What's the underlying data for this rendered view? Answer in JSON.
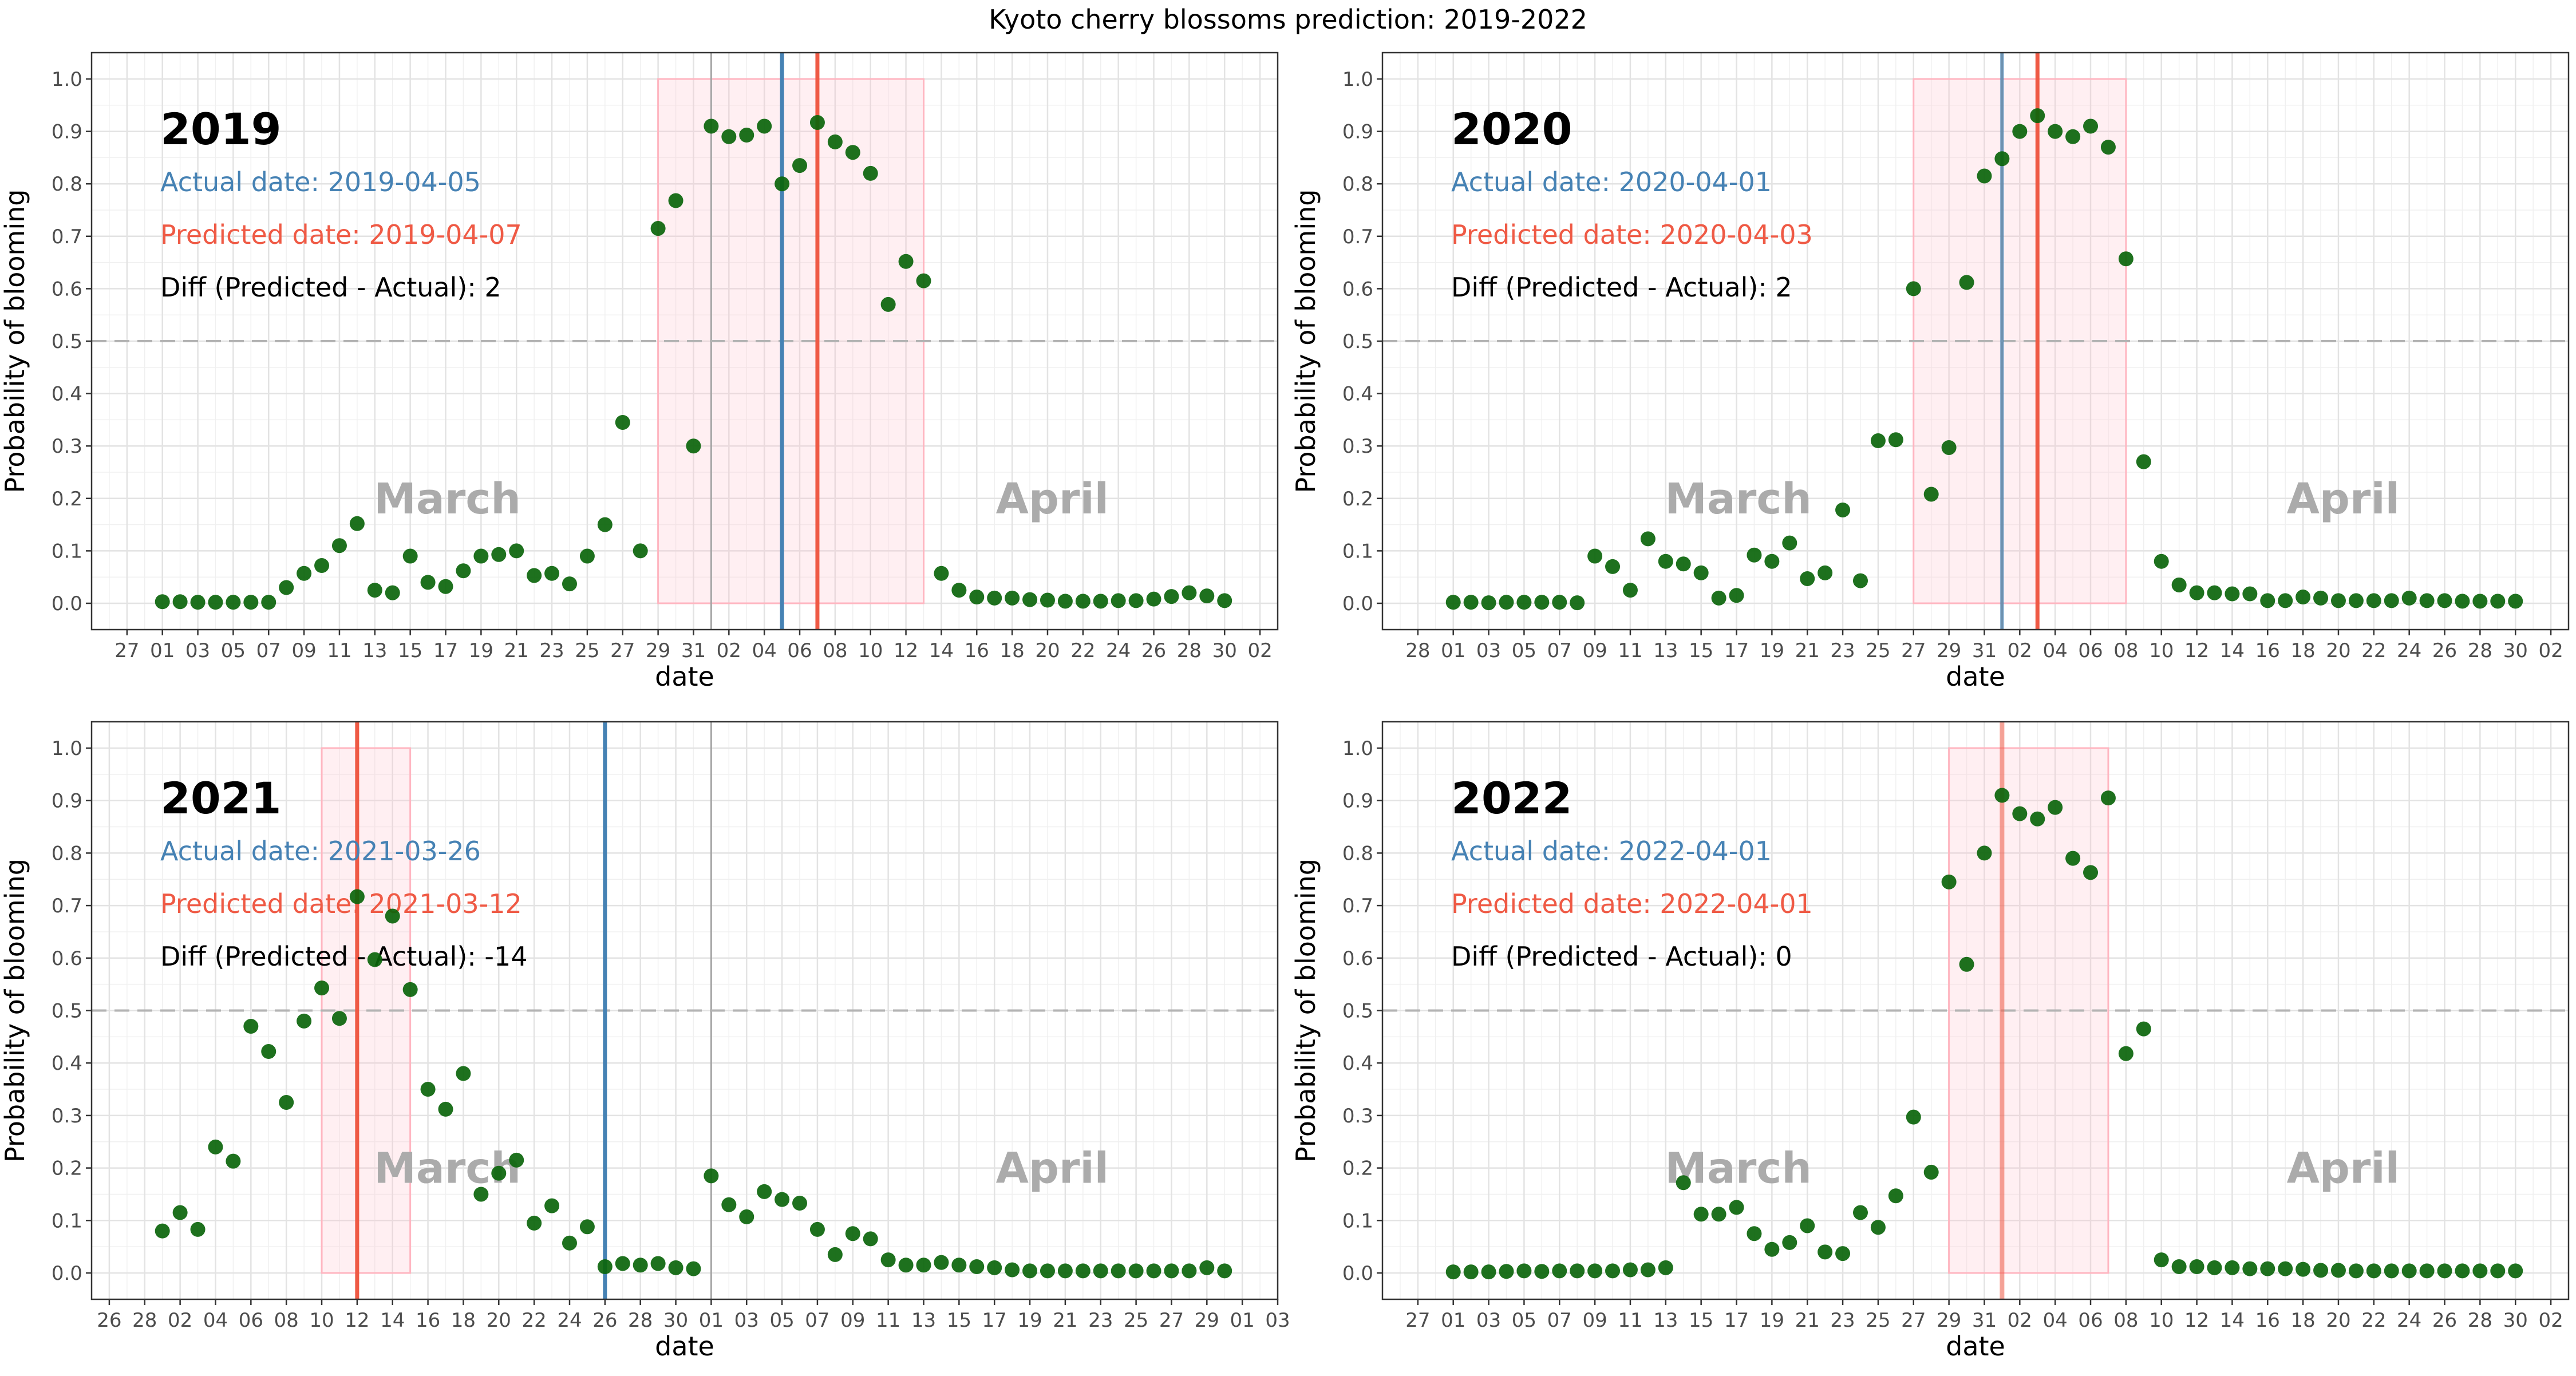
{
  "title": "Kyoto cherry blossoms prediction: 2019-2022",
  "colors": {
    "point": "#0b650b",
    "actual": "#4682b4",
    "predicted": "#ef5a45",
    "band_fill": "#ffc0cb",
    "band_stroke": "#ffb6c1",
    "threshold": "#b3b3b3",
    "month_label": "#ababab",
    "grid_major": "#e3e3e3",
    "grid_minor": "#f0f0f0",
    "panel_border": "#333333"
  },
  "chart_data": [
    {
      "type": "scatter",
      "year_label": "2019",
      "actual_text": "Actual date: 2019-04-05",
      "predicted_text": "Predicted date: 2019-04-07",
      "diff_text": "Diff (Predicted - Actual): 2",
      "month_labels": [
        "March",
        "April"
      ],
      "xlabel": "date",
      "ylabel": "Probability of blooming",
      "ylim": [
        0,
        1
      ],
      "yticks": [
        "0.0",
        "0.1",
        "0.2",
        "0.3",
        "0.4",
        "0.5",
        "0.6",
        "0.7",
        "0.8",
        "0.9",
        "1.0"
      ],
      "threshold": 0.5,
      "x_range": [
        "2019-02-25",
        "2019-05-03"
      ],
      "xticks": [
        "2019-02-27",
        "2019-03-01",
        "2019-03-03",
        "2019-03-05",
        "2019-03-07",
        "2019-03-09",
        "2019-03-11",
        "2019-03-13",
        "2019-03-15",
        "2019-03-17",
        "2019-03-19",
        "2019-03-21",
        "2019-03-23",
        "2019-03-25",
        "2019-03-27",
        "2019-03-29",
        "2019-03-31",
        "2019-04-02",
        "2019-04-04",
        "2019-04-06",
        "2019-04-08",
        "2019-04-10",
        "2019-04-12",
        "2019-04-14",
        "2019-04-16",
        "2019-04-18",
        "2019-04-20",
        "2019-04-22",
        "2019-04-24",
        "2019-04-26",
        "2019-04-28",
        "2019-04-30",
        "2019-05-02"
      ],
      "xtick_labels": [
        "27",
        "01",
        "03",
        "05",
        "07",
        "09",
        "11",
        "13",
        "15",
        "17",
        "19",
        "21",
        "23",
        "25",
        "27",
        "29",
        "31",
        "02",
        "04",
        "06",
        "08",
        "10",
        "12",
        "14",
        "16",
        "18",
        "20",
        "22",
        "24",
        "26",
        "28",
        "30",
        "02"
      ],
      "month_boundary": "2019-04-01",
      "actual_date": "2019-04-05",
      "predicted_date": "2019-04-07",
      "band": [
        "2019-03-29",
        "2019-04-13"
      ],
      "x": [
        "2019-03-01",
        "2019-03-02",
        "2019-03-03",
        "2019-03-04",
        "2019-03-05",
        "2019-03-06",
        "2019-03-07",
        "2019-03-08",
        "2019-03-09",
        "2019-03-10",
        "2019-03-11",
        "2019-03-12",
        "2019-03-13",
        "2019-03-14",
        "2019-03-15",
        "2019-03-16",
        "2019-03-17",
        "2019-03-18",
        "2019-03-19",
        "2019-03-20",
        "2019-03-21",
        "2019-03-22",
        "2019-03-23",
        "2019-03-24",
        "2019-03-25",
        "2019-03-26",
        "2019-03-27",
        "2019-03-28",
        "2019-03-29",
        "2019-03-30",
        "2019-03-31",
        "2019-04-01",
        "2019-04-02",
        "2019-04-03",
        "2019-04-04",
        "2019-04-05",
        "2019-04-06",
        "2019-04-07",
        "2019-04-08",
        "2019-04-09",
        "2019-04-10",
        "2019-04-11",
        "2019-04-12",
        "2019-04-13",
        "2019-04-14",
        "2019-04-15",
        "2019-04-16",
        "2019-04-17",
        "2019-04-18",
        "2019-04-19",
        "2019-04-20",
        "2019-04-21",
        "2019-04-22",
        "2019-04-23",
        "2019-04-24",
        "2019-04-25",
        "2019-04-26",
        "2019-04-27",
        "2019-04-28",
        "2019-04-29",
        "2019-04-30"
      ],
      "y": [
        0.003,
        0.003,
        0.002,
        0.002,
        0.002,
        0.002,
        0.002,
        0.03,
        0.057,
        0.072,
        0.11,
        0.152,
        0.025,
        0.02,
        0.09,
        0.04,
        0.032,
        0.062,
        0.09,
        0.093,
        0.1,
        0.053,
        0.057,
        0.037,
        0.09,
        0.15,
        0.345,
        0.1,
        0.715,
        0.768,
        0.3,
        0.91,
        0.89,
        0.893,
        0.91,
        0.8,
        0.835,
        0.917,
        0.88,
        0.86,
        0.82,
        0.57,
        0.652,
        0.615,
        0.057,
        0.025,
        0.012,
        0.01,
        0.01,
        0.007,
        0.006,
        0.004,
        0.004,
        0.004,
        0.005,
        0.005,
        0.008,
        0.013,
        0.02,
        0.014,
        0.005
      ]
    },
    {
      "type": "scatter",
      "year_label": "2020",
      "actual_text": "Actual date: 2020-04-01",
      "predicted_text": "Predicted date: 2020-04-03",
      "diff_text": "Diff (Predicted - Actual): 2",
      "month_labels": [
        "March",
        "April"
      ],
      "xlabel": "date",
      "ylabel": "Probability of blooming",
      "ylim": [
        0,
        1
      ],
      "yticks": [
        "0.0",
        "0.1",
        "0.2",
        "0.3",
        "0.4",
        "0.5",
        "0.6",
        "0.7",
        "0.8",
        "0.9",
        "1.0"
      ],
      "threshold": 0.5,
      "x_range": [
        "2020-02-26",
        "2020-05-03"
      ],
      "xticks": [
        "2020-02-28",
        "2020-03-01",
        "2020-03-03",
        "2020-03-05",
        "2020-03-07",
        "2020-03-09",
        "2020-03-11",
        "2020-03-13",
        "2020-03-15",
        "2020-03-17",
        "2020-03-19",
        "2020-03-21",
        "2020-03-23",
        "2020-03-25",
        "2020-03-27",
        "2020-03-29",
        "2020-03-31",
        "2020-04-02",
        "2020-04-04",
        "2020-04-06",
        "2020-04-08",
        "2020-04-10",
        "2020-04-12",
        "2020-04-14",
        "2020-04-16",
        "2020-04-18",
        "2020-04-20",
        "2020-04-22",
        "2020-04-24",
        "2020-04-26",
        "2020-04-28",
        "2020-04-30",
        "2020-05-02"
      ],
      "xtick_labels": [
        "28",
        "01",
        "03",
        "05",
        "07",
        "09",
        "11",
        "13",
        "15",
        "17",
        "19",
        "21",
        "23",
        "25",
        "27",
        "29",
        "31",
        "02",
        "04",
        "06",
        "08",
        "10",
        "12",
        "14",
        "16",
        "18",
        "20",
        "22",
        "24",
        "26",
        "28",
        "30",
        "02"
      ],
      "month_boundary": "2020-04-01",
      "actual_date": "2020-04-01",
      "predicted_date": "2020-04-03",
      "band": [
        "2020-03-27",
        "2020-04-08"
      ],
      "x": [
        "2020-03-01",
        "2020-03-02",
        "2020-03-03",
        "2020-03-04",
        "2020-03-05",
        "2020-03-06",
        "2020-03-07",
        "2020-03-08",
        "2020-03-09",
        "2020-03-10",
        "2020-03-11",
        "2020-03-12",
        "2020-03-13",
        "2020-03-14",
        "2020-03-15",
        "2020-03-16",
        "2020-03-17",
        "2020-03-18",
        "2020-03-19",
        "2020-03-20",
        "2020-03-21",
        "2020-03-22",
        "2020-03-23",
        "2020-03-24",
        "2020-03-25",
        "2020-03-26",
        "2020-03-27",
        "2020-03-28",
        "2020-03-29",
        "2020-03-30",
        "2020-03-31",
        "2020-04-01",
        "2020-04-02",
        "2020-04-03",
        "2020-04-04",
        "2020-04-05",
        "2020-04-06",
        "2020-04-07",
        "2020-04-08",
        "2020-04-09",
        "2020-04-10",
        "2020-04-11",
        "2020-04-12",
        "2020-04-13",
        "2020-04-14",
        "2020-04-15",
        "2020-04-16",
        "2020-04-17",
        "2020-04-18",
        "2020-04-19",
        "2020-04-20",
        "2020-04-21",
        "2020-04-22",
        "2020-04-23",
        "2020-04-24",
        "2020-04-25",
        "2020-04-26",
        "2020-04-27",
        "2020-04-28",
        "2020-04-29",
        "2020-04-30"
      ],
      "y": [
        0.002,
        0.002,
        0.001,
        0.002,
        0.002,
        0.002,
        0.002,
        0.001,
        0.09,
        0.07,
        0.025,
        0.123,
        0.08,
        0.075,
        0.058,
        0.01,
        0.015,
        0.092,
        0.08,
        0.115,
        0.047,
        0.058,
        0.178,
        0.043,
        0.31,
        0.312,
        0.6,
        0.208,
        0.297,
        0.612,
        0.815,
        0.848,
        0.9,
        0.93,
        0.9,
        0.89,
        0.91,
        0.87,
        0.657,
        0.27,
        0.08,
        0.035,
        0.02,
        0.02,
        0.018,
        0.018,
        0.005,
        0.005,
        0.012,
        0.01,
        0.005,
        0.005,
        0.005,
        0.005,
        0.01,
        0.005,
        0.005,
        0.004,
        0.004,
        0.004,
        0.004
      ]
    },
    {
      "type": "scatter",
      "year_label": "2021",
      "actual_text": "Actual date: 2021-03-26",
      "predicted_text": "Predicted date: 2021-03-12",
      "diff_text": "Diff (Predicted - Actual): -14",
      "month_labels": [
        "March",
        "April"
      ],
      "xlabel": "date",
      "ylabel": "Probability of blooming",
      "ylim": [
        0,
        1
      ],
      "yticks": [
        "0.0",
        "0.1",
        "0.2",
        "0.3",
        "0.4",
        "0.5",
        "0.6",
        "0.7",
        "0.8",
        "0.9",
        "1.0"
      ],
      "threshold": 0.5,
      "x_range": [
        "2021-02-25",
        "2021-05-03"
      ],
      "xticks": [
        "2021-02-26",
        "2021-02-28",
        "2021-03-02",
        "2021-03-04",
        "2021-03-06",
        "2021-03-08",
        "2021-03-10",
        "2021-03-12",
        "2021-03-14",
        "2021-03-16",
        "2021-03-18",
        "2021-03-20",
        "2021-03-22",
        "2021-03-24",
        "2021-03-26",
        "2021-03-28",
        "2021-03-30",
        "2021-04-01",
        "2021-04-03",
        "2021-04-05",
        "2021-04-07",
        "2021-04-09",
        "2021-04-11",
        "2021-04-13",
        "2021-04-15",
        "2021-04-17",
        "2021-04-19",
        "2021-04-21",
        "2021-04-23",
        "2021-04-25",
        "2021-04-27",
        "2021-04-29",
        "2021-05-01",
        "2021-05-03"
      ],
      "xtick_labels": [
        "26",
        "28",
        "02",
        "04",
        "06",
        "08",
        "10",
        "12",
        "14",
        "16",
        "18",
        "20",
        "22",
        "24",
        "26",
        "28",
        "30",
        "01",
        "03",
        "05",
        "07",
        "09",
        "11",
        "13",
        "15",
        "17",
        "19",
        "21",
        "23",
        "25",
        "27",
        "29",
        "01",
        "03"
      ],
      "month_boundary": "2021-04-01",
      "actual_date": "2021-03-26",
      "predicted_date": "2021-03-12",
      "band": [
        "2021-03-10",
        "2021-03-15"
      ],
      "x": [
        "2021-03-01",
        "2021-03-02",
        "2021-03-03",
        "2021-03-04",
        "2021-03-05",
        "2021-03-06",
        "2021-03-07",
        "2021-03-08",
        "2021-03-09",
        "2021-03-10",
        "2021-03-11",
        "2021-03-12",
        "2021-03-13",
        "2021-03-14",
        "2021-03-15",
        "2021-03-16",
        "2021-03-17",
        "2021-03-18",
        "2021-03-19",
        "2021-03-20",
        "2021-03-21",
        "2021-03-22",
        "2021-03-23",
        "2021-03-24",
        "2021-03-25",
        "2021-03-26",
        "2021-03-27",
        "2021-03-28",
        "2021-03-29",
        "2021-03-30",
        "2021-03-31",
        "2021-04-01",
        "2021-04-02",
        "2021-04-03",
        "2021-04-04",
        "2021-04-05",
        "2021-04-06",
        "2021-04-07",
        "2021-04-08",
        "2021-04-09",
        "2021-04-10",
        "2021-04-11",
        "2021-04-12",
        "2021-04-13",
        "2021-04-14",
        "2021-04-15",
        "2021-04-16",
        "2021-04-17",
        "2021-04-18",
        "2021-04-19",
        "2021-04-20",
        "2021-04-21",
        "2021-04-22",
        "2021-04-23",
        "2021-04-24",
        "2021-04-25",
        "2021-04-26",
        "2021-04-27",
        "2021-04-28",
        "2021-04-29",
        "2021-04-30"
      ],
      "y": [
        0.08,
        0.115,
        0.083,
        0.24,
        0.213,
        0.47,
        0.422,
        0.325,
        0.48,
        0.543,
        0.485,
        0.717,
        0.597,
        0.68,
        0.54,
        0.35,
        0.312,
        0.38,
        0.15,
        0.19,
        0.215,
        0.095,
        0.128,
        0.057,
        0.088,
        0.012,
        0.018,
        0.015,
        0.018,
        0.01,
        0.008,
        0.185,
        0.13,
        0.107,
        0.155,
        0.14,
        0.133,
        0.083,
        0.035,
        0.075,
        0.065,
        0.025,
        0.015,
        0.015,
        0.02,
        0.015,
        0.012,
        0.01,
        0.006,
        0.004,
        0.004,
        0.004,
        0.004,
        0.004,
        0.004,
        0.004,
        0.004,
        0.004,
        0.004,
        0.01,
        0.004
      ]
    },
    {
      "type": "scatter",
      "year_label": "2022",
      "actual_text": "Actual date: 2022-04-01",
      "predicted_text": "Predicted date: 2022-04-01",
      "diff_text": "Diff (Predicted - Actual): 0",
      "month_labels": [
        "March",
        "April"
      ],
      "xlabel": "date",
      "ylabel": "Probability of blooming",
      "ylim": [
        0,
        1
      ],
      "yticks": [
        "0.0",
        "0.1",
        "0.2",
        "0.3",
        "0.4",
        "0.5",
        "0.6",
        "0.7",
        "0.8",
        "0.9",
        "1.0"
      ],
      "threshold": 0.5,
      "x_range": [
        "2022-02-25",
        "2022-05-03"
      ],
      "xticks": [
        "2022-02-27",
        "2022-03-01",
        "2022-03-03",
        "2022-03-05",
        "2022-03-07",
        "2022-03-09",
        "2022-03-11",
        "2022-03-13",
        "2022-03-15",
        "2022-03-17",
        "2022-03-19",
        "2022-03-21",
        "2022-03-23",
        "2022-03-25",
        "2022-03-27",
        "2022-03-29",
        "2022-03-31",
        "2022-04-02",
        "2022-04-04",
        "2022-04-06",
        "2022-04-08",
        "2022-04-10",
        "2022-04-12",
        "2022-04-14",
        "2022-04-16",
        "2022-04-18",
        "2022-04-20",
        "2022-04-22",
        "2022-04-24",
        "2022-04-26",
        "2022-04-28",
        "2022-04-30",
        "2022-05-02"
      ],
      "xtick_labels": [
        "27",
        "01",
        "03",
        "05",
        "07",
        "09",
        "11",
        "13",
        "15",
        "17",
        "19",
        "21",
        "23",
        "25",
        "27",
        "29",
        "31",
        "02",
        "04",
        "06",
        "08",
        "10",
        "12",
        "14",
        "16",
        "18",
        "20",
        "22",
        "24",
        "26",
        "28",
        "30",
        "02"
      ],
      "month_boundary": null,
      "actual_date": "2022-04-01",
      "predicted_date": "2022-04-01",
      "band": [
        "2022-03-29",
        "2022-04-07"
      ],
      "x": [
        "2022-03-01",
        "2022-03-02",
        "2022-03-03",
        "2022-03-04",
        "2022-03-05",
        "2022-03-06",
        "2022-03-07",
        "2022-03-08",
        "2022-03-09",
        "2022-03-10",
        "2022-03-11",
        "2022-03-12",
        "2022-03-13",
        "2022-03-14",
        "2022-03-15",
        "2022-03-16",
        "2022-03-17",
        "2022-03-18",
        "2022-03-19",
        "2022-03-20",
        "2022-03-21",
        "2022-03-22",
        "2022-03-23",
        "2022-03-24",
        "2022-03-25",
        "2022-03-26",
        "2022-03-27",
        "2022-03-28",
        "2022-03-29",
        "2022-03-30",
        "2022-03-31",
        "2022-04-01",
        "2022-04-02",
        "2022-04-03",
        "2022-04-04",
        "2022-04-05",
        "2022-04-06",
        "2022-04-07",
        "2022-04-08",
        "2022-04-09",
        "2022-04-10",
        "2022-04-11",
        "2022-04-12",
        "2022-04-13",
        "2022-04-14",
        "2022-04-15",
        "2022-04-16",
        "2022-04-17",
        "2022-04-18",
        "2022-04-19",
        "2022-04-20",
        "2022-04-21",
        "2022-04-22",
        "2022-04-23",
        "2022-04-24",
        "2022-04-25",
        "2022-04-26",
        "2022-04-27",
        "2022-04-28",
        "2022-04-29",
        "2022-04-30"
      ],
      "y": [
        0.002,
        0.002,
        0.002,
        0.003,
        0.004,
        0.003,
        0.004,
        0.004,
        0.004,
        0.004,
        0.006,
        0.006,
        0.01,
        0.172,
        0.112,
        0.112,
        0.125,
        0.075,
        0.045,
        0.058,
        0.09,
        0.04,
        0.037,
        0.115,
        0.087,
        0.147,
        0.297,
        0.192,
        0.745,
        0.588,
        0.8,
        0.91,
        0.875,
        0.865,
        0.887,
        0.79,
        0.763,
        0.905,
        0.418,
        0.465,
        0.025,
        0.012,
        0.012,
        0.01,
        0.01,
        0.008,
        0.008,
        0.008,
        0.007,
        0.005,
        0.005,
        0.004,
        0.004,
        0.004,
        0.004,
        0.004,
        0.004,
        0.004,
        0.004,
        0.004,
        0.004
      ]
    }
  ]
}
